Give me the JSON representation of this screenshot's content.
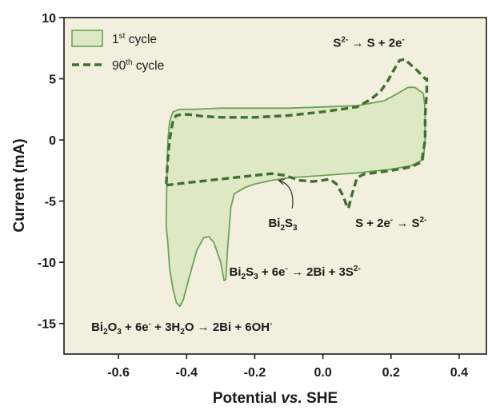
{
  "chart_data": {
    "type": "line",
    "xlabel": {
      "pre": "Potential ",
      "italic": "vs.",
      "post": " SHE"
    },
    "ylabel": "Current (mA)",
    "xlim": [
      -0.76,
      0.48
    ],
    "ylim": [
      -17.5,
      10
    ],
    "xticks": [
      -0.6,
      -0.4,
      -0.2,
      0.0,
      0.2,
      0.4
    ],
    "xtick_labels": [
      "-0.6",
      "-0.4",
      "-0.2",
      "0.0",
      "0.2",
      "0.4"
    ],
    "yticks": [
      -15,
      -10,
      -5,
      0,
      5,
      10
    ],
    "ytick_labels": [
      "-15",
      "-10",
      "-5",
      "0",
      "5",
      "10"
    ],
    "grid": false,
    "legend_position": "top-left",
    "colors": {
      "background": "#f3efdf",
      "fill_first": "#dfe8c5",
      "line_first": "#6aa356",
      "line_90th": "#3f6e2f"
    },
    "series": [
      {
        "name": "1st cycle",
        "legend": {
          "base": "1",
          "sup": "st",
          "rest": " cycle"
        },
        "style": "solid-filled",
        "points": [
          [
            -0.46,
            -7.0
          ],
          [
            -0.455,
            -8.5
          ],
          [
            -0.45,
            -10.5
          ],
          [
            -0.44,
            -12.2
          ],
          [
            -0.43,
            -13.3
          ],
          [
            -0.42,
            -13.6
          ],
          [
            -0.41,
            -13.1
          ],
          [
            -0.39,
            -11.0
          ],
          [
            -0.37,
            -9.0
          ],
          [
            -0.35,
            -8.0
          ],
          [
            -0.335,
            -7.9
          ],
          [
            -0.32,
            -8.4
          ],
          [
            -0.3,
            -10.0
          ],
          [
            -0.29,
            -11.5
          ],
          [
            -0.285,
            -11.4
          ],
          [
            -0.28,
            -9.0
          ],
          [
            -0.27,
            -5.5
          ],
          [
            -0.26,
            -4.4
          ],
          [
            -0.23,
            -3.9
          ],
          [
            -0.2,
            -3.6
          ],
          [
            -0.15,
            -3.3
          ],
          [
            -0.1,
            -3.1
          ],
          [
            0.0,
            -2.9
          ],
          [
            0.1,
            -2.7
          ],
          [
            0.2,
            -2.4
          ],
          [
            0.26,
            -2.1
          ],
          [
            0.295,
            -1.6
          ],
          [
            0.3,
            0.0
          ],
          [
            0.3,
            2.5
          ],
          [
            0.295,
            3.8
          ],
          [
            0.27,
            4.3
          ],
          [
            0.25,
            4.3
          ],
          [
            0.22,
            3.8
          ],
          [
            0.18,
            3.2
          ],
          [
            0.1,
            2.8
          ],
          [
            0.0,
            2.7
          ],
          [
            -0.1,
            2.6
          ],
          [
            -0.2,
            2.6
          ],
          [
            -0.3,
            2.6
          ],
          [
            -0.38,
            2.5
          ],
          [
            -0.42,
            2.5
          ],
          [
            -0.44,
            2.3
          ],
          [
            -0.45,
            1.5
          ],
          [
            -0.455,
            0.0
          ],
          [
            -0.458,
            -3.0
          ],
          [
            -0.46,
            -7.0
          ]
        ]
      },
      {
        "name": "90th cycle",
        "legend": {
          "base": "90",
          "sup": "th",
          "rest": " cycle"
        },
        "style": "dashed",
        "points": [
          [
            -0.46,
            -3.7
          ],
          [
            -0.4,
            -3.5
          ],
          [
            -0.3,
            -3.2
          ],
          [
            -0.2,
            -2.9
          ],
          [
            -0.15,
            -2.75
          ],
          [
            -0.11,
            -2.9
          ],
          [
            -0.07,
            -3.3
          ],
          [
            -0.03,
            -3.4
          ],
          [
            0.0,
            -3.3
          ],
          [
            0.02,
            -3.2
          ],
          [
            0.04,
            -3.6
          ],
          [
            0.06,
            -4.6
          ],
          [
            0.07,
            -5.4
          ],
          [
            0.075,
            -5.6
          ],
          [
            0.085,
            -4.5
          ],
          [
            0.1,
            -3.1
          ],
          [
            0.12,
            -2.8
          ],
          [
            0.2,
            -2.5
          ],
          [
            0.26,
            -2.2
          ],
          [
            0.29,
            -1.8
          ],
          [
            0.3,
            0.0
          ],
          [
            0.3,
            2.0
          ],
          [
            0.305,
            4.0
          ],
          [
            0.305,
            5.0
          ],
          [
            0.3,
            5.0
          ],
          [
            0.28,
            5.6
          ],
          [
            0.26,
            6.1
          ],
          [
            0.24,
            6.6
          ],
          [
            0.225,
            6.5
          ],
          [
            0.21,
            5.8
          ],
          [
            0.19,
            4.8
          ],
          [
            0.17,
            4.0
          ],
          [
            0.14,
            3.3
          ],
          [
            0.1,
            2.7
          ],
          [
            0.0,
            2.3
          ],
          [
            -0.1,
            2.0
          ],
          [
            -0.2,
            1.85
          ],
          [
            -0.3,
            1.85
          ],
          [
            -0.36,
            1.95
          ],
          [
            -0.38,
            2.05
          ],
          [
            -0.41,
            2.1
          ],
          [
            -0.43,
            2.0
          ],
          [
            -0.44,
            1.6
          ],
          [
            -0.445,
            0.8
          ],
          [
            -0.45,
            0.0
          ],
          [
            -0.455,
            -1.5
          ],
          [
            -0.46,
            -3.7
          ]
        ]
      }
    ],
    "annotations": [
      {
        "id": "s2-oxidation",
        "text": [
          {
            "t": "S"
          },
          {
            "t": "2-",
            "sup": true
          },
          {
            "t": " → S + 2e"
          },
          {
            "t": "-",
            "sup": true
          }
        ],
        "x": 0.03,
        "y": 7.6
      },
      {
        "id": "s-reduction",
        "text": [
          {
            "t": "S + 2e"
          },
          {
            "t": "-",
            "sup": true
          },
          {
            "t": " → S"
          },
          {
            "t": "2-",
            "sup": true
          }
        ],
        "x": 0.095,
        "y": -7.1
      },
      {
        "id": "bi2s3-label",
        "text": [
          {
            "t": "Bi"
          },
          {
            "t": "2",
            "sub": true
          },
          {
            "t": "S"
          },
          {
            "t": "3",
            "sub": true
          }
        ],
        "x": -0.16,
        "y": -7.1
      },
      {
        "id": "bi2s3-reduction",
        "text": [
          {
            "t": "Bi"
          },
          {
            "t": "2",
            "sub": true
          },
          {
            "t": "S"
          },
          {
            "t": "3",
            "sub": true
          },
          {
            "t": " + 6e"
          },
          {
            "t": "-",
            "sup": true
          },
          {
            "t": " → 2Bi + 3S"
          },
          {
            "t": "2-",
            "sup": true
          }
        ],
        "x": -0.275,
        "y": -11.1
      },
      {
        "id": "bi2o3-reduction",
        "text": [
          {
            "t": "Bi"
          },
          {
            "t": "2",
            "sub": true
          },
          {
            "t": "O"
          },
          {
            "t": "3",
            "sub": true
          },
          {
            "t": " + 6e"
          },
          {
            "t": "-",
            "sup": true
          },
          {
            "t": " + 3H"
          },
          {
            "t": "2",
            "sub": true
          },
          {
            "t": "O → 2Bi + 6OH"
          },
          {
            "t": "-",
            "sup": true
          }
        ],
        "x": -0.68,
        "y": -15.6
      }
    ],
    "arrow": {
      "id": "bi2s3-arrow",
      "from": [
        -0.09,
        -5.6
      ],
      "to": [
        -0.13,
        -3.3
      ]
    }
  }
}
